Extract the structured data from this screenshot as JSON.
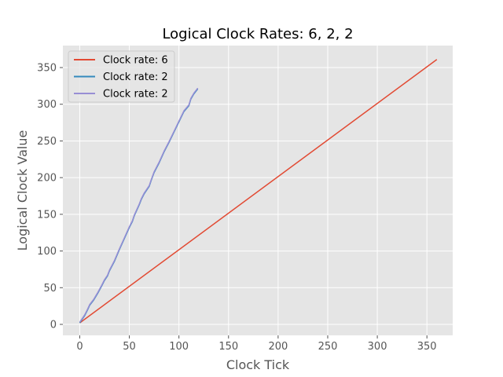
{
  "chart_data": {
    "type": "line",
    "title": "Logical Clock Rates: 6, 2, 2",
    "xlabel": "Clock Tick",
    "ylabel": "Logical Clock Value",
    "xlim": [
      -17,
      376
    ],
    "ylim": [
      -15,
      380
    ],
    "xticks": [
      0,
      50,
      100,
      150,
      200,
      250,
      300,
      350
    ],
    "yticks": [
      0,
      50,
      100,
      150,
      200,
      250,
      300,
      350
    ],
    "grid": true,
    "legend_position": "top-left",
    "series": [
      {
        "name": "Clock rate: 6",
        "color": "#E24A33",
        "x": [
          0,
          360
        ],
        "y": [
          2,
          361
        ]
      },
      {
        "name": "Clock rate: 2",
        "color": "#348ABD",
        "x": [
          0,
          2,
          5,
          8,
          10,
          14,
          18,
          22,
          25,
          28,
          30,
          35,
          40,
          45,
          50,
          53,
          55,
          60,
          62,
          65,
          70,
          72,
          75,
          80,
          85,
          90,
          95,
          100,
          105,
          110,
          112,
          115,
          119
        ],
        "y": [
          2,
          6,
          12,
          20,
          26,
          33,
          42,
          52,
          60,
          66,
          73,
          86,
          102,
          117,
          132,
          140,
          148,
          163,
          170,
          178,
          188,
          196,
          207,
          220,
          235,
          248,
          262,
          276,
          290,
          298,
          307,
          314,
          321
        ]
      },
      {
        "name": "Clock rate: 2",
        "color": "#988ED5",
        "x": [
          0,
          2,
          5,
          8,
          10,
          14,
          18,
          22,
          25,
          28,
          30,
          35,
          40,
          45,
          50,
          53,
          55,
          60,
          62,
          65,
          70,
          72,
          75,
          80,
          85,
          90,
          95,
          100,
          105,
          110,
          112,
          115,
          119
        ],
        "y": [
          3,
          7,
          13,
          21,
          27,
          34,
          43,
          53,
          61,
          67,
          74,
          87,
          103,
          118,
          133,
          141,
          149,
          164,
          171,
          179,
          189,
          197,
          208,
          221,
          236,
          249,
          263,
          277,
          291,
          299,
          308,
          315,
          322
        ]
      }
    ]
  }
}
